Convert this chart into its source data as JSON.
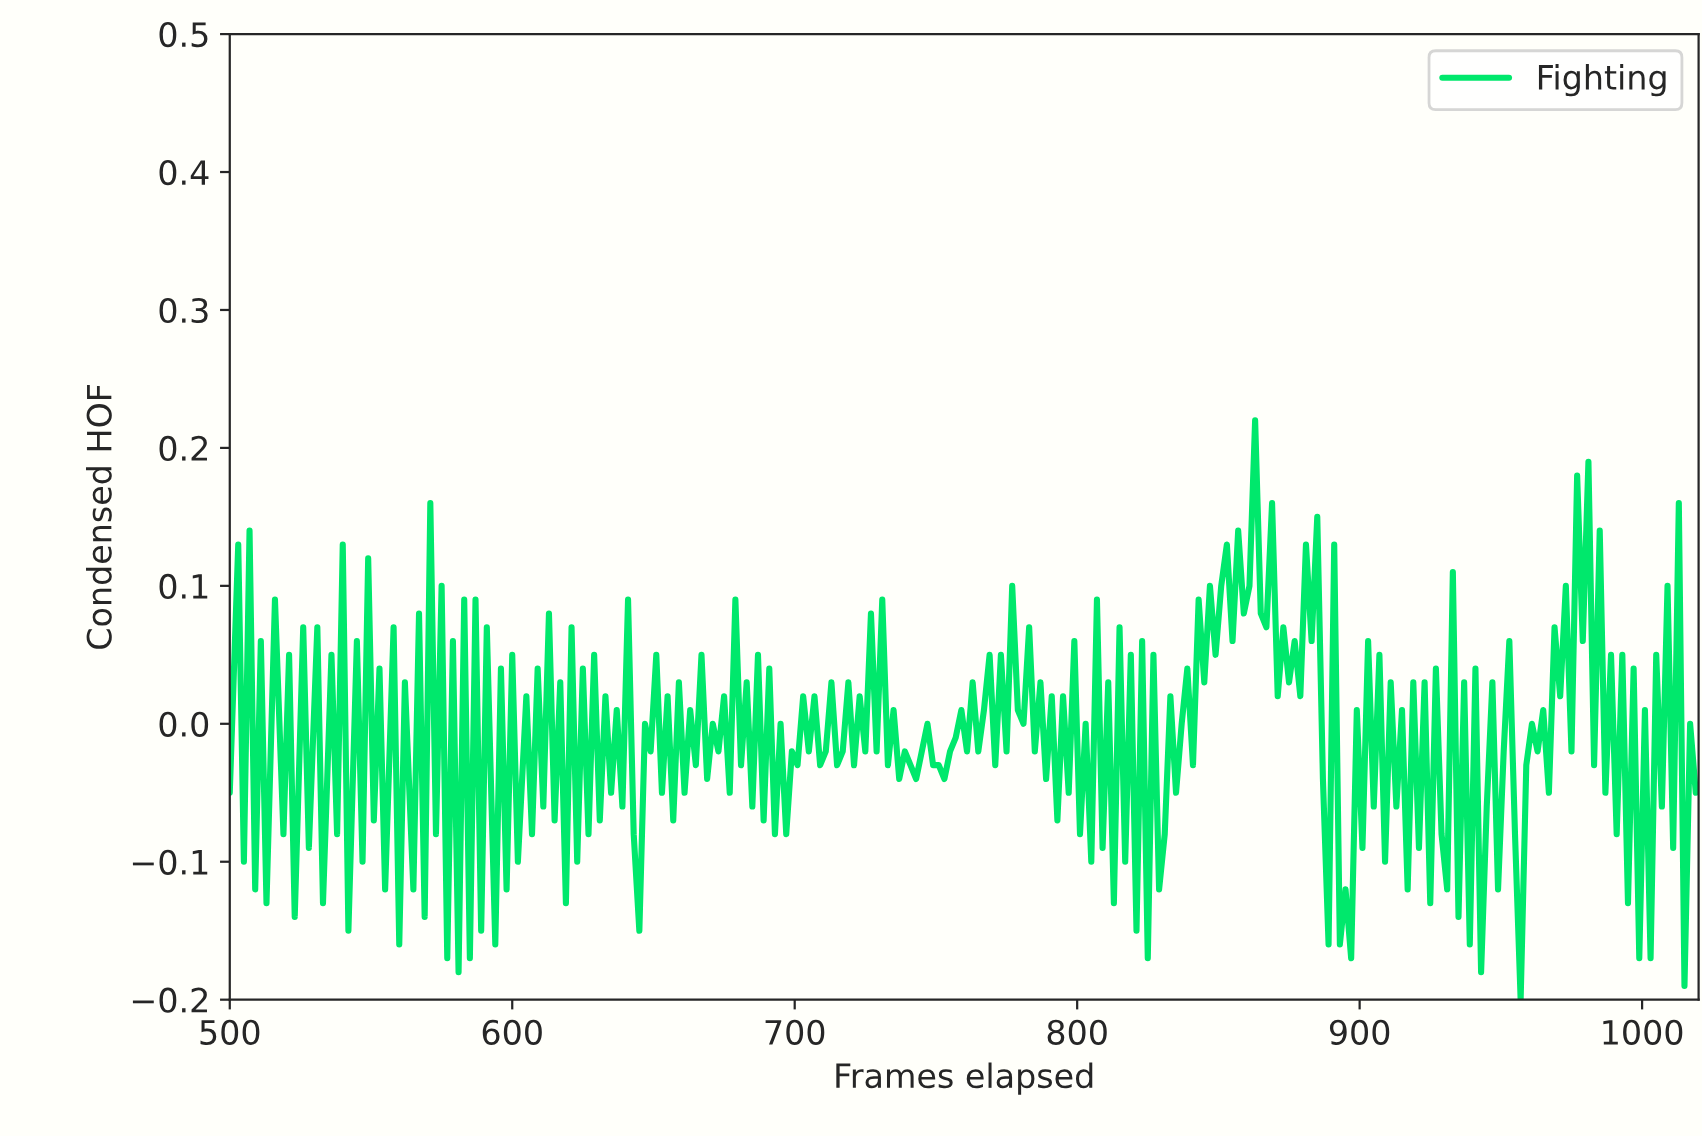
{
  "chart_data": {
    "type": "line",
    "xlabel": "Frames elapsed",
    "ylabel": "Condensed HOF",
    "xlim": [
      500,
      1020
    ],
    "xticks": [
      500,
      600,
      700,
      800,
      900,
      1000
    ],
    "ylim": [
      -0.2,
      0.5
    ],
    "yticks": [
      {
        "value": -0.2,
        "label": "−0.2"
      },
      {
        "value": -0.1,
        "label": "−0.1"
      },
      {
        "value": 0,
        "label": "0.0"
      },
      {
        "value": 0.1,
        "label": "0.1"
      },
      {
        "value": 0.2,
        "label": "0.2"
      },
      {
        "value": 0.3,
        "label": "0.3"
      },
      {
        "value": 0.4,
        "label": "0.4"
      },
      {
        "value": 0.5,
        "label": "0.5"
      }
    ],
    "grid": false,
    "legend": "top right",
    "series": [
      {
        "name": "Fighting",
        "color": "#00e86c",
        "x": [
          500,
          503,
          505,
          507,
          509,
          511,
          513,
          516,
          519,
          521,
          523,
          526,
          528,
          531,
          533,
          536,
          538,
          540,
          542,
          545,
          547,
          549,
          551,
          553,
          555,
          558,
          560,
          562,
          565,
          567,
          569,
          571,
          573,
          575,
          577,
          579,
          581,
          583,
          585,
          587,
          589,
          591,
          594,
          596,
          598,
          600,
          602,
          605,
          607,
          609,
          611,
          613,
          615,
          617,
          619,
          621,
          623,
          625,
          627,
          629,
          631,
          633,
          635,
          637,
          639,
          641,
          643,
          645,
          647,
          649,
          651,
          653,
          655,
          657,
          659,
          661,
          663,
          665,
          667,
          669,
          671,
          673,
          675,
          677,
          679,
          681,
          683,
          685,
          687,
          689,
          691,
          693,
          695,
          697,
          699,
          701,
          703,
          705,
          707,
          709,
          711,
          713,
          715,
          717,
          719,
          721,
          723,
          725,
          727,
          729,
          731,
          733,
          735,
          737,
          739,
          741,
          743,
          745,
          747,
          749,
          751,
          753,
          755,
          757,
          759,
          761,
          763,
          765,
          767,
          769,
          771,
          773,
          775,
          777,
          779,
          781,
          783,
          785,
          787,
          789,
          791,
          793,
          795,
          797,
          799,
          801,
          803,
          805,
          807,
          809,
          811,
          813,
          815,
          817,
          819,
          821,
          823,
          825,
          827,
          829,
          831,
          833,
          835,
          837,
          839,
          841,
          843,
          845,
          847,
          849,
          851,
          853,
          855,
          857,
          859,
          861,
          863,
          865,
          867,
          869,
          871,
          873,
          875,
          877,
          879,
          881,
          883,
          885,
          887,
          889,
          891,
          893,
          895,
          897,
          899,
          901,
          903,
          905,
          907,
          909,
          911,
          913,
          915,
          917,
          919,
          921,
          923,
          925,
          927,
          929,
          931,
          933,
          935,
          937,
          939,
          941,
          943,
          945,
          947,
          949,
          951,
          953,
          955,
          957,
          959,
          961,
          963,
          965,
          967,
          969,
          971,
          973,
          975,
          977,
          979,
          981,
          983,
          985,
          987,
          989,
          991,
          993,
          995,
          997,
          999,
          1001,
          1003,
          1005,
          1007,
          1009,
          1011,
          1013,
          1015,
          1017,
          1019
        ],
        "values": [
          -0.05,
          0.13,
          -0.1,
          0.14,
          -0.12,
          0.06,
          -0.13,
          0.09,
          -0.08,
          0.05,
          -0.14,
          0.07,
          -0.09,
          0.07,
          -0.13,
          0.05,
          -0.08,
          0.13,
          -0.15,
          0.06,
          -0.1,
          0.12,
          -0.07,
          0.04,
          -0.12,
          0.07,
          -0.16,
          0.03,
          -0.12,
          0.08,
          -0.14,
          0.16,
          -0.08,
          0.1,
          -0.17,
          0.06,
          -0.18,
          0.09,
          -0.17,
          0.09,
          -0.15,
          0.07,
          -0.16,
          0.04,
          -0.12,
          0.05,
          -0.1,
          0.02,
          -0.08,
          0.04,
          -0.06,
          0.08,
          -0.07,
          0.03,
          -0.13,
          0.07,
          -0.1,
          0.04,
          -0.08,
          0.05,
          -0.07,
          0.02,
          -0.05,
          0.01,
          -0.06,
          0.09,
          -0.08,
          -0.15,
          0.0,
          -0.02,
          0.05,
          -0.05,
          0.02,
          -0.07,
          0.03,
          -0.05,
          0.01,
          -0.03,
          0.05,
          -0.04,
          0.0,
          -0.02,
          0.02,
          -0.05,
          0.09,
          -0.03,
          0.03,
          -0.06,
          0.05,
          -0.07,
          0.04,
          -0.08,
          0.0,
          -0.08,
          -0.02,
          -0.03,
          0.02,
          -0.02,
          0.02,
          -0.03,
          -0.02,
          0.03,
          -0.03,
          -0.02,
          0.03,
          -0.03,
          0.02,
          -0.02,
          0.08,
          -0.02,
          0.09,
          -0.03,
          0.01,
          -0.04,
          -0.02,
          -0.03,
          -0.04,
          -0.02,
          0.0,
          -0.03,
          -0.03,
          -0.04,
          -0.02,
          -0.01,
          0.01,
          -0.02,
          0.03,
          -0.02,
          0.01,
          0.05,
          -0.03,
          0.05,
          -0.02,
          0.1,
          0.01,
          0.0,
          0.07,
          -0.02,
          0.03,
          -0.04,
          0.02,
          -0.07,
          0.02,
          -0.05,
          0.06,
          -0.08,
          0.0,
          -0.1,
          0.09,
          -0.09,
          0.03,
          -0.13,
          0.07,
          -0.1,
          0.05,
          -0.15,
          0.06,
          -0.17,
          0.05,
          -0.12,
          -0.08,
          0.02,
          -0.05,
          0.0,
          0.04,
          -0.03,
          0.09,
          0.03,
          0.1,
          0.05,
          0.1,
          0.13,
          0.06,
          0.14,
          0.08,
          0.1,
          0.22,
          0.08,
          0.07,
          0.16,
          0.02,
          0.07,
          0.03,
          0.06,
          0.02,
          0.13,
          0.06,
          0.15,
          -0.04,
          -0.16,
          0.13,
          -0.16,
          -0.12,
          -0.17,
          0.01,
          -0.09,
          0.06,
          -0.06,
          0.05,
          -0.1,
          0.03,
          -0.06,
          0.01,
          -0.12,
          0.03,
          -0.09,
          0.03,
          -0.13,
          0.04,
          -0.08,
          -0.12,
          0.11,
          -0.14,
          0.03,
          -0.16,
          0.04,
          -0.18,
          -0.06,
          0.03,
          -0.12,
          -0.02,
          0.06,
          -0.08,
          -0.2,
          -0.03,
          0.0,
          -0.02,
          0.01,
          -0.05,
          0.07,
          0.02,
          0.1,
          -0.02,
          0.18,
          0.06,
          0.19,
          -0.03,
          0.14,
          -0.05,
          0.05,
          -0.08,
          0.05,
          -0.13,
          0.04,
          -0.17,
          0.01,
          -0.17,
          0.05,
          -0.06,
          0.1,
          -0.09,
          0.16,
          -0.19,
          0.0,
          -0.05
        ]
      }
    ]
  }
}
